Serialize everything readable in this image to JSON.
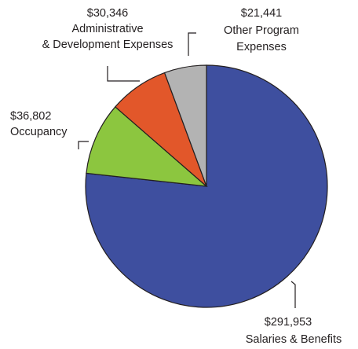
{
  "chart_data": {
    "type": "pie",
    "title": "",
    "slices": [
      {
        "value": 291953,
        "amount": "$291,953",
        "label": "Salaries & Benefits",
        "label_lines": [
          "Salaries & Benefits"
        ],
        "color": "#3e4f9f"
      },
      {
        "value": 36802,
        "amount": "$36,802",
        "label": "Occupancy",
        "label_lines": [
          "Occupancy"
        ],
        "color": "#8cc63f"
      },
      {
        "value": 30346,
        "amount": "$30,346",
        "label": "Administrative & Development Expenses",
        "label_lines": [
          "Administrative",
          "& Development Expenses"
        ],
        "color": "#e2572a"
      },
      {
        "value": 21441,
        "amount": "$21,441",
        "label": "Other Program Expenses",
        "label_lines": [
          "Other Program",
          "Expenses"
        ],
        "color": "#b3b3b3"
      }
    ]
  }
}
